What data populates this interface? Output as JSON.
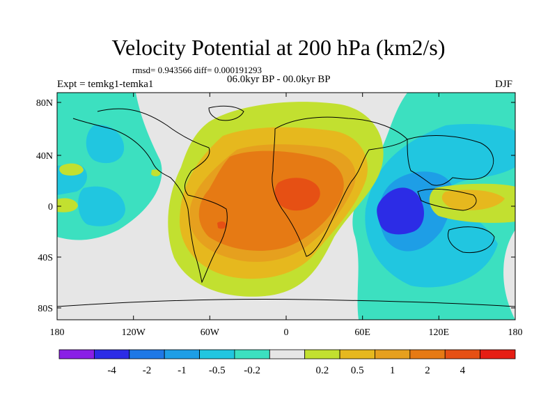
{
  "figure": {
    "title": "Velocity Potential at 200 hPa (km2/s)",
    "stats": "rmsd= 0.943566 diff= 0.000191293",
    "period": "06.0kyr BP - 00.0kyr BP",
    "experiment": "Expt = temkg1-temka1",
    "season": "DJF"
  },
  "axes": {
    "lat_ticks": [
      "80N",
      "40N",
      "0",
      "40S",
      "80S"
    ],
    "lon_ticks": [
      "180",
      "120W",
      "60W",
      "0",
      "60E",
      "120E",
      "180"
    ]
  },
  "colorbar": {
    "colors": [
      "#8a1fe6",
      "#2c2ce6",
      "#1e78e6",
      "#1e9ee6",
      "#21c6e0",
      "#3ce0c0",
      "#e6e6e6",
      "#c2e030",
      "#e6b81e",
      "#e6a01e",
      "#e67a14",
      "#e65014",
      "#e61e14"
    ],
    "labels": [
      "-4",
      "-2",
      "-1",
      "-0.5",
      "-0.2",
      "0.2",
      "0.5",
      "1",
      "2",
      "4"
    ]
  },
  "map_colors": {
    "neutral": "#e6e6e6",
    "pos_02": "#c2e030",
    "pos_05": "#e6b81e",
    "pos_1": "#e6a01e",
    "pos_2": "#e67a14",
    "pos_4": "#e65014",
    "neg_02": "#3ce0c0",
    "neg_05": "#21c6e0",
    "neg_1": "#1e9ee6",
    "neg_2": "#1e78e6",
    "neg_4": "#2c2ce6"
  }
}
